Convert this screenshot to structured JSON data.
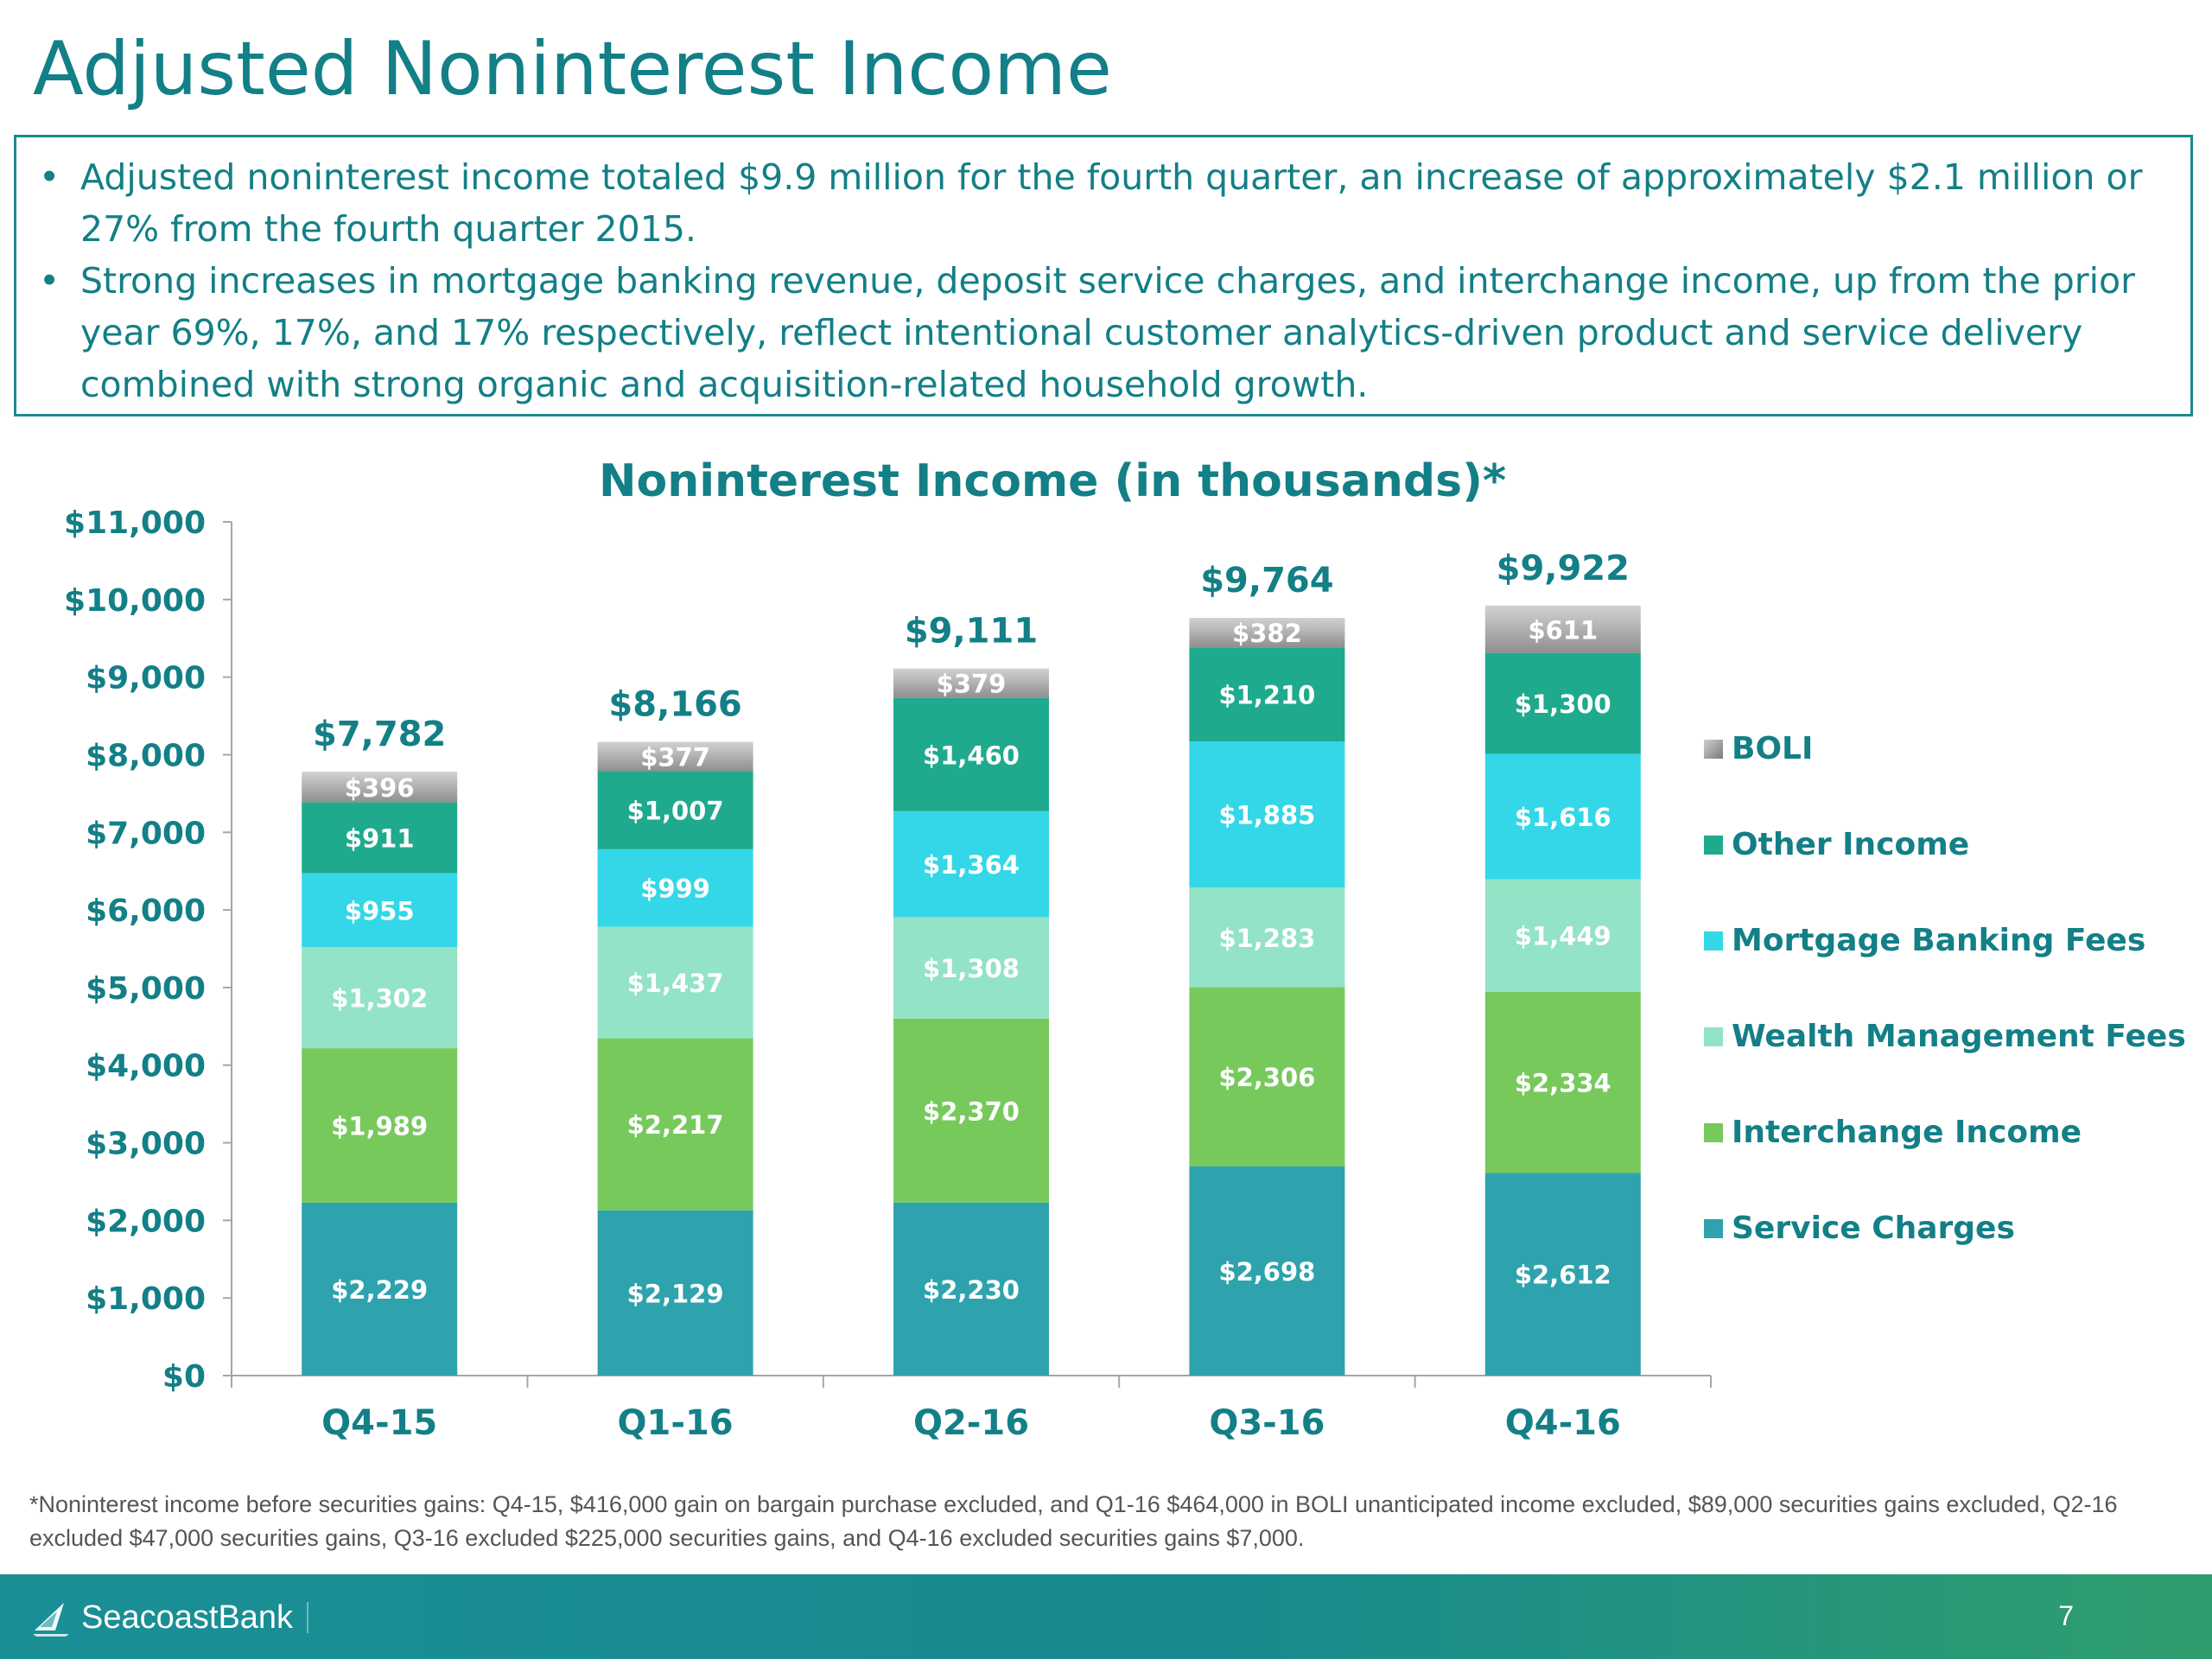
{
  "page": {
    "title": "Adjusted Noninterest Income",
    "bullets": [
      "Adjusted noninterest income totaled $9.9 million for the fourth quarter, an increase of approximately $2.1 million or 27% from the fourth quarter 2015.",
      "Strong increases in mortgage banking revenue, deposit service charges, and interchange income, up from the prior year 69%, 17%, and 17% respectively, reflect intentional customer analytics-driven product and service delivery combined with strong organic and acquisition-related household growth."
    ],
    "footnote": "*Noninterest income before securities gains: Q4-15, $416,000 gain on bargain purchase excluded, and Q1-16 $464,000 in BOLI unanticipated income excluded, $89,000 securities gains excluded, Q2-16 excluded $47,000 securities gains, Q3-16 excluded $225,000 securities gains, and Q4-16 excluded securities gains $7,000.",
    "page_number": "7",
    "logo_text": "SeacoastBank"
  },
  "chart_data": {
    "type": "bar",
    "stacked": true,
    "title": "Noninterest Income (in thousands)*",
    "xlabel": "",
    "ylabel": "",
    "categories": [
      "Q4-15",
      "Q1-16",
      "Q2-16",
      "Q3-16",
      "Q4-16"
    ],
    "ylim": [
      0,
      11000
    ],
    "yticks": [
      0,
      1000,
      2000,
      3000,
      4000,
      5000,
      6000,
      7000,
      8000,
      9000,
      10000,
      11000
    ],
    "ytick_labels": [
      "$0",
      "$1,000",
      "$2,000",
      "$3,000",
      "$4,000",
      "$5,000",
      "$6,000",
      "$7,000",
      "$8,000",
      "$9,000",
      "$10,000",
      "$11,000"
    ],
    "legend_position": "right",
    "grid": false,
    "series": [
      {
        "name": "Service Charges",
        "color": "#2ea3ad",
        "values": [
          2229,
          2129,
          2230,
          2698,
          2612
        ],
        "labels": [
          "$2,229",
          "$2,129",
          "$2,230",
          "$2,698",
          "$2,612"
        ]
      },
      {
        "name": "Interchange Income",
        "color": "#77c95c",
        "values": [
          1989,
          2217,
          2370,
          2306,
          2334
        ],
        "labels": [
          "$1,989",
          "$2,217",
          "$2,370",
          "$2,306",
          "$2,334"
        ]
      },
      {
        "name": "Wealth Management Fees",
        "color": "#93e3c6",
        "values": [
          1302,
          1437,
          1308,
          1283,
          1449
        ],
        "labels": [
          "$1,302",
          "$1,437",
          "$1,308",
          "$1,283",
          "$1,449"
        ]
      },
      {
        "name": "Mortgage Banking Fees",
        "color": "#34d7e7",
        "values": [
          955,
          999,
          1364,
          1885,
          1616
        ],
        "labels": [
          "$955",
          "$999",
          "$1,364",
          "$1,885",
          "$1,616"
        ]
      },
      {
        "name": "Other Income",
        "color": "#1faa8e",
        "values": [
          911,
          1007,
          1460,
          1210,
          1300
        ],
        "labels": [
          "$911",
          "$1,007",
          "$1,460",
          "$1,210",
          "$1,300"
        ]
      },
      {
        "name": "BOLI",
        "color": "#a8a8a8",
        "values": [
          396,
          377,
          379,
          382,
          611
        ],
        "labels": [
          "$396",
          "$377",
          "$379",
          "$382",
          "$611"
        ]
      }
    ],
    "totals": [
      7782,
      8166,
      9111,
      9764,
      9922
    ],
    "total_labels": [
      "$7,782",
      "$8,166",
      "$9,111",
      "$9,764",
      "$9,922"
    ],
    "legend_order": [
      "BOLI",
      "Other Income",
      "Mortgage Banking Fees",
      "Wealth Management Fees",
      "Interchange Income",
      "Service Charges"
    ]
  }
}
